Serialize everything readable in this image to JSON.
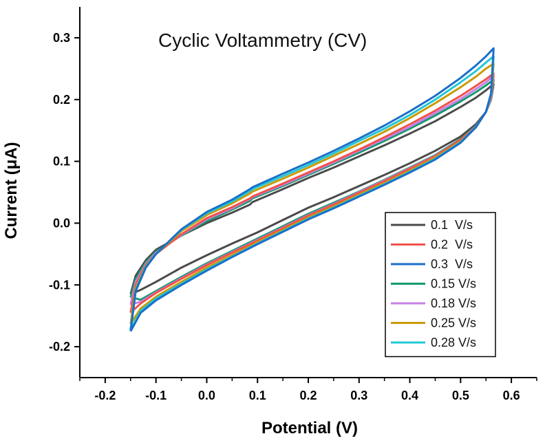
{
  "chart_data": {
    "type": "line",
    "title": "Cyclic Voltammetry (CV)",
    "xlabel": "Potential (V)",
    "ylabel": "Current (μA)",
    "xlim": [
      -0.25,
      0.65
    ],
    "ylim": [
      -0.25,
      0.35
    ],
    "x_ticks": [
      -0.2,
      -0.1,
      0.0,
      0.1,
      0.2,
      0.3,
      0.4,
      0.5,
      0.6
    ],
    "x_tick_labels": [
      "-0.2",
      "-0.1",
      "0.0",
      "0.1",
      "0.2",
      "0.3",
      "0.4",
      "0.5",
      "0.6"
    ],
    "y_ticks": [
      -0.2,
      -0.1,
      0.0,
      0.1,
      0.2,
      0.3
    ],
    "y_tick_labels": [
      "-0.2",
      "-0.1",
      "0.0",
      "0.1",
      "0.2",
      "0.3"
    ],
    "grid": false,
    "legend_position": "bottom-right",
    "series": [
      {
        "name": "0.1  V/s",
        "color": "#4a4a4a",
        "forward_x": [
          -0.15,
          -0.14,
          -0.12,
          -0.1,
          -0.05,
          0.0,
          0.05,
          0.085,
          0.09,
          0.15,
          0.2,
          0.25,
          0.3,
          0.35,
          0.4,
          0.45,
          0.5,
          0.53,
          0.55,
          0.565
        ],
        "forward_y": [
          -0.115,
          -0.085,
          -0.06,
          -0.043,
          -0.02,
          0.0,
          0.017,
          0.03,
          0.034,
          0.055,
          0.073,
          0.09,
          0.108,
          0.126,
          0.145,
          0.165,
          0.188,
          0.203,
          0.215,
          0.225
        ],
        "reverse_x": [
          0.565,
          0.56,
          0.55,
          0.53,
          0.5,
          0.45,
          0.4,
          0.35,
          0.3,
          0.25,
          0.2,
          0.15,
          0.1,
          0.05,
          0.0,
          -0.05,
          -0.1,
          -0.13,
          -0.15
        ],
        "reverse_y": [
          0.225,
          0.2,
          0.18,
          0.16,
          0.14,
          0.117,
          0.097,
          0.078,
          0.06,
          0.042,
          0.025,
          0.005,
          -0.015,
          -0.033,
          -0.052,
          -0.072,
          -0.095,
          -0.108,
          -0.115
        ]
      },
      {
        "name": "0.2  V/s",
        "color": "#f0524a",
        "forward_x": [
          -0.15,
          -0.14,
          -0.12,
          -0.1,
          -0.05,
          0.0,
          0.05,
          0.085,
          0.09,
          0.15,
          0.2,
          0.25,
          0.3,
          0.35,
          0.4,
          0.45,
          0.5,
          0.53,
          0.55,
          0.565
        ],
        "forward_y": [
          -0.145,
          -0.1,
          -0.068,
          -0.05,
          -0.018,
          0.008,
          0.026,
          0.04,
          0.043,
          0.064,
          0.082,
          0.1,
          0.119,
          0.139,
          0.16,
          0.182,
          0.206,
          0.222,
          0.233,
          0.242
        ],
        "reverse_x": [
          0.565,
          0.56,
          0.55,
          0.53,
          0.5,
          0.45,
          0.4,
          0.35,
          0.3,
          0.25,
          0.2,
          0.15,
          0.1,
          0.05,
          0.0,
          -0.05,
          -0.1,
          -0.13,
          -0.15
        ],
        "reverse_y": [
          0.242,
          0.205,
          0.18,
          0.155,
          0.135,
          0.108,
          0.088,
          0.068,
          0.049,
          0.03,
          0.012,
          -0.008,
          -0.028,
          -0.048,
          -0.068,
          -0.09,
          -0.113,
          -0.13,
          -0.145
        ]
      },
      {
        "name": "0.3  V/s",
        "color": "#1a6fc9",
        "forward_x": [
          -0.15,
          -0.14,
          -0.12,
          -0.1,
          -0.05,
          0.0,
          0.05,
          0.085,
          0.09,
          0.15,
          0.2,
          0.25,
          0.3,
          0.35,
          0.4,
          0.45,
          0.5,
          0.53,
          0.55,
          0.565
        ],
        "forward_y": [
          -0.175,
          -0.11,
          -0.072,
          -0.05,
          -0.01,
          0.018,
          0.038,
          0.055,
          0.058,
          0.08,
          0.098,
          0.117,
          0.137,
          0.158,
          0.181,
          0.206,
          0.235,
          0.255,
          0.27,
          0.283
        ],
        "reverse_x": [
          0.565,
          0.56,
          0.55,
          0.53,
          0.5,
          0.45,
          0.4,
          0.35,
          0.3,
          0.25,
          0.2,
          0.15,
          0.1,
          0.05,
          0.0,
          -0.05,
          -0.1,
          -0.13,
          -0.15
        ],
        "reverse_y": [
          0.283,
          0.21,
          0.18,
          0.155,
          0.13,
          0.103,
          0.082,
          0.062,
          0.043,
          0.024,
          0.006,
          -0.014,
          -0.034,
          -0.055,
          -0.077,
          -0.1,
          -0.125,
          -0.145,
          -0.175
        ]
      },
      {
        "name": "0.15 V/s",
        "color": "#12996b",
        "forward_x": [
          -0.15,
          -0.14,
          -0.12,
          -0.1,
          -0.05,
          0.0,
          0.05,
          0.085,
          0.09,
          0.15,
          0.2,
          0.25,
          0.3,
          0.35,
          0.4,
          0.45,
          0.5,
          0.53,
          0.55,
          0.565
        ],
        "forward_y": [
          -0.12,
          -0.09,
          -0.063,
          -0.046,
          -0.02,
          0.003,
          0.022,
          0.036,
          0.04,
          0.06,
          0.078,
          0.096,
          0.114,
          0.133,
          0.153,
          0.174,
          0.197,
          0.212,
          0.223,
          0.232
        ],
        "reverse_x": [
          0.565,
          0.56,
          0.55,
          0.53,
          0.5,
          0.45,
          0.4,
          0.35,
          0.3,
          0.25,
          0.2,
          0.15,
          0.1,
          0.05,
          0.0,
          -0.05,
          -0.1,
          -0.13,
          -0.15
        ],
        "reverse_y": [
          0.232,
          0.2,
          0.18,
          0.157,
          0.136,
          0.11,
          0.09,
          0.07,
          0.051,
          0.033,
          0.015,
          -0.005,
          -0.025,
          -0.045,
          -0.065,
          -0.087,
          -0.11,
          -0.124,
          -0.12
        ]
      },
      {
        "name": "0.18 V/s",
        "color": "#c77fe6",
        "forward_x": [
          -0.15,
          -0.14,
          -0.12,
          -0.1,
          -0.05,
          0.0,
          0.05,
          0.085,
          0.09,
          0.15,
          0.2,
          0.25,
          0.3,
          0.35,
          0.4,
          0.45,
          0.5,
          0.53,
          0.55,
          0.565
        ],
        "forward_y": [
          -0.132,
          -0.095,
          -0.066,
          -0.048,
          -0.019,
          0.006,
          0.024,
          0.039,
          0.042,
          0.062,
          0.08,
          0.098,
          0.117,
          0.136,
          0.156,
          0.178,
          0.201,
          0.217,
          0.228,
          0.238
        ],
        "reverse_x": [
          0.565,
          0.56,
          0.55,
          0.53,
          0.5,
          0.45,
          0.4,
          0.35,
          0.3,
          0.25,
          0.2,
          0.15,
          0.1,
          0.05,
          0.0,
          -0.05,
          -0.1,
          -0.13,
          -0.15
        ],
        "reverse_y": [
          0.238,
          0.202,
          0.18,
          0.156,
          0.135,
          0.109,
          0.089,
          0.069,
          0.05,
          0.031,
          0.013,
          -0.007,
          -0.027,
          -0.047,
          -0.067,
          -0.089,
          -0.112,
          -0.127,
          -0.132
        ]
      },
      {
        "name": "0.25 V/s",
        "color": "#c99a06",
        "forward_x": [
          -0.15,
          -0.14,
          -0.12,
          -0.1,
          -0.05,
          0.0,
          0.05,
          0.085,
          0.09,
          0.15,
          0.2,
          0.25,
          0.3,
          0.35,
          0.4,
          0.45,
          0.5,
          0.53,
          0.55,
          0.565
        ],
        "forward_y": [
          -0.163,
          -0.105,
          -0.07,
          -0.05,
          -0.013,
          0.013,
          0.032,
          0.048,
          0.051,
          0.072,
          0.09,
          0.109,
          0.128,
          0.148,
          0.17,
          0.194,
          0.22,
          0.237,
          0.25,
          0.258
        ],
        "reverse_x": [
          0.565,
          0.56,
          0.55,
          0.53,
          0.5,
          0.45,
          0.4,
          0.35,
          0.3,
          0.25,
          0.2,
          0.15,
          0.1,
          0.05,
          0.0,
          -0.05,
          -0.1,
          -0.13,
          -0.15
        ],
        "reverse_y": [
          0.258,
          0.207,
          0.18,
          0.155,
          0.132,
          0.106,
          0.085,
          0.065,
          0.046,
          0.027,
          0.009,
          -0.011,
          -0.031,
          -0.052,
          -0.072,
          -0.095,
          -0.119,
          -0.138,
          -0.163
        ]
      },
      {
        "name": "0.28 V/s",
        "color": "#22c7d6",
        "forward_x": [
          -0.15,
          -0.14,
          -0.12,
          -0.1,
          -0.05,
          0.0,
          0.05,
          0.085,
          0.09,
          0.15,
          0.2,
          0.25,
          0.3,
          0.35,
          0.4,
          0.45,
          0.5,
          0.53,
          0.55,
          0.565
        ],
        "forward_y": [
          -0.172,
          -0.108,
          -0.071,
          -0.05,
          -0.011,
          0.016,
          0.035,
          0.052,
          0.055,
          0.076,
          0.094,
          0.113,
          0.133,
          0.153,
          0.175,
          0.2,
          0.228,
          0.246,
          0.26,
          0.27
        ],
        "reverse_x": [
          0.565,
          0.56,
          0.55,
          0.53,
          0.5,
          0.45,
          0.4,
          0.35,
          0.3,
          0.25,
          0.2,
          0.15,
          0.1,
          0.05,
          0.0,
          -0.05,
          -0.1,
          -0.13,
          -0.15
        ],
        "reverse_y": [
          0.27,
          0.209,
          0.18,
          0.155,
          0.131,
          0.104,
          0.083,
          0.063,
          0.044,
          0.025,
          0.007,
          -0.013,
          -0.033,
          -0.054,
          -0.075,
          -0.098,
          -0.122,
          -0.142,
          -0.172
        ]
      }
    ]
  }
}
